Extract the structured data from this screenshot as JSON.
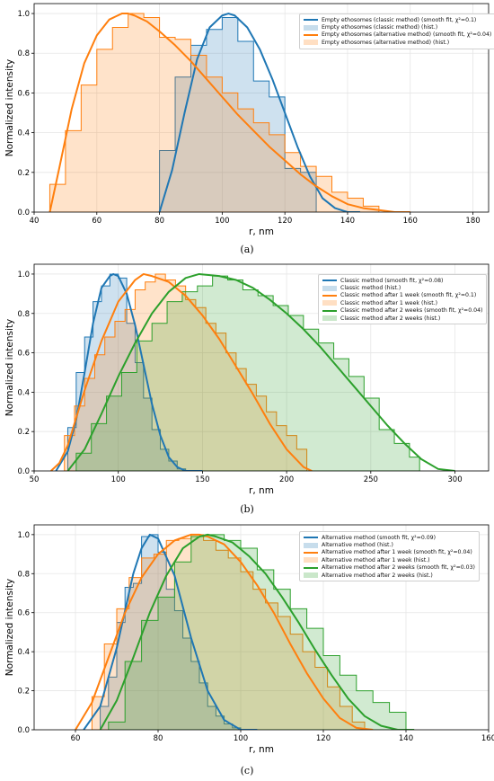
{
  "chart_data": [
    {
      "type": "line",
      "panel_label": "(a)",
      "xlabel": "r, nm",
      "ylabel": "Normalized intensity",
      "xlim": [
        40,
        185
      ],
      "ylim": [
        0,
        1.05
      ],
      "xticks": [
        40,
        60,
        80,
        100,
        120,
        140,
        160,
        180
      ],
      "yticks": [
        0.0,
        0.2,
        0.4,
        0.6,
        0.8,
        1.0
      ],
      "grid": true,
      "legend_position": "top-right",
      "series": [
        {
          "name": "Empty ethosomes (classic method) (smooth fit, χ²=0.1)",
          "kind": "curve",
          "color": "#1f77b4",
          "x": [
            80,
            84,
            88,
            92,
            96,
            100,
            102,
            104,
            108,
            112,
            116,
            120,
            124,
            128,
            132,
            136,
            140,
            144
          ],
          "y": [
            0.0,
            0.21,
            0.5,
            0.77,
            0.93,
            0.99,
            1.0,
            0.99,
            0.93,
            0.82,
            0.67,
            0.5,
            0.33,
            0.18,
            0.07,
            0.02,
            0.0,
            0.0
          ]
        },
        {
          "name": "Empty ethosomes (classic method) (hist.)",
          "kind": "hist",
          "color": "#1f77b4",
          "edges": [
            80,
            85,
            90,
            95,
            100,
            105,
            110,
            115,
            120,
            125,
            130
          ],
          "values": [
            0.31,
            0.68,
            0.84,
            0.92,
            0.98,
            0.86,
            0.66,
            0.58,
            0.22,
            0.2
          ]
        },
        {
          "name": "Empty ethosomes (alternative method) (smooth fit, χ²=0.04)",
          "kind": "curve",
          "color": "#ff7f0e",
          "x": [
            45,
            48,
            52,
            56,
            60,
            64,
            68,
            70,
            72,
            76,
            80,
            85,
            90,
            95,
            100,
            105,
            110,
            115,
            120,
            125,
            130,
            135,
            140,
            145,
            150,
            155,
            160
          ],
          "y": [
            0.0,
            0.22,
            0.52,
            0.75,
            0.89,
            0.97,
            1.0,
            1.0,
            0.99,
            0.96,
            0.91,
            0.84,
            0.76,
            0.67,
            0.58,
            0.49,
            0.41,
            0.33,
            0.26,
            0.19,
            0.13,
            0.08,
            0.04,
            0.02,
            0.01,
            0.0,
            0.0
          ]
        },
        {
          "name": "Empty ethosomes (alternative method) (hist.)",
          "kind": "hist",
          "color": "#ff7f0e",
          "edges": [
            45,
            50,
            55,
            60,
            65,
            70,
            75,
            80,
            85,
            90,
            95,
            100,
            105,
            110,
            115,
            120,
            125,
            130,
            135,
            140,
            145,
            150
          ],
          "values": [
            0.14,
            0.41,
            0.64,
            0.82,
            0.93,
            1.0,
            0.98,
            0.88,
            0.87,
            0.79,
            0.68,
            0.6,
            0.52,
            0.45,
            0.39,
            0.3,
            0.23,
            0.18,
            0.1,
            0.07,
            0.03
          ]
        }
      ]
    },
    {
      "type": "line",
      "panel_label": "(b)",
      "xlabel": "r, nm",
      "ylabel": "Normalized intensity",
      "xlim": [
        50,
        320
      ],
      "ylim": [
        0,
        1.05
      ],
      "xticks": [
        50,
        100,
        150,
        200,
        250,
        300
      ],
      "yticks": [
        0.0,
        0.2,
        0.4,
        0.6,
        0.8,
        1.0
      ],
      "grid": true,
      "legend_position": "top-right",
      "series": [
        {
          "name": "Classic method (smooth fit, χ²=0.08)",
          "kind": "curve",
          "color": "#1f77b4",
          "x": [
            63,
            70,
            75,
            80,
            85,
            90,
            95,
            97,
            100,
            105,
            110,
            115,
            120,
            125,
            130,
            135,
            140,
            150
          ],
          "y": [
            0.0,
            0.1,
            0.26,
            0.5,
            0.75,
            0.93,
            0.99,
            1.0,
            0.99,
            0.9,
            0.74,
            0.54,
            0.34,
            0.18,
            0.07,
            0.02,
            0.0,
            0.0
          ]
        },
        {
          "name": "Classic method (hist.)",
          "kind": "hist",
          "color": "#1f77b4",
          "edges": [
            70,
            75,
            80,
            85,
            90,
            95,
            100,
            105,
            110,
            115,
            120,
            125,
            130,
            135,
            140
          ],
          "values": [
            0.22,
            0.5,
            0.68,
            0.86,
            0.94,
            1.0,
            0.98,
            0.75,
            0.55,
            0.37,
            0.21,
            0.11,
            0.05,
            0.01
          ]
        },
        {
          "name": "Classic method after 1 week (smooth fit, χ²=0.1)",
          "kind": "curve",
          "color": "#ff7f0e",
          "x": [
            60,
            65,
            70,
            75,
            80,
            90,
            100,
            110,
            115,
            120,
            130,
            140,
            150,
            160,
            170,
            180,
            190,
            200,
            210,
            215
          ],
          "y": [
            0.0,
            0.04,
            0.13,
            0.27,
            0.41,
            0.66,
            0.86,
            0.97,
            1.0,
            0.99,
            0.96,
            0.89,
            0.79,
            0.67,
            0.53,
            0.39,
            0.24,
            0.11,
            0.02,
            0.0
          ]
        },
        {
          "name": "Classic method after 1 week (hist.)",
          "kind": "hist",
          "color": "#ff7f0e",
          "edges": [
            68,
            74,
            80,
            86,
            92,
            98,
            104,
            110,
            116,
            122,
            128,
            134,
            140,
            146,
            152,
            158,
            164,
            170,
            176,
            182,
            188,
            194,
            200,
            206,
            212
          ],
          "values": [
            0.18,
            0.33,
            0.47,
            0.59,
            0.68,
            0.76,
            0.82,
            0.92,
            0.96,
            1.0,
            0.97,
            0.94,
            0.87,
            0.83,
            0.75,
            0.7,
            0.6,
            0.52,
            0.44,
            0.38,
            0.3,
            0.23,
            0.18,
            0.11
          ]
        },
        {
          "name": "Classic method after 2 weeks (smooth fit, χ²=0.04)",
          "kind": "curve",
          "color": "#2ca02c",
          "x": [
            70,
            80,
            90,
            100,
            110,
            120,
            130,
            140,
            148,
            160,
            170,
            180,
            190,
            200,
            210,
            220,
            230,
            240,
            250,
            260,
            270,
            280,
            290,
            300
          ],
          "y": [
            0.0,
            0.11,
            0.29,
            0.48,
            0.65,
            0.8,
            0.91,
            0.98,
            1.0,
            0.99,
            0.97,
            0.93,
            0.87,
            0.8,
            0.72,
            0.63,
            0.53,
            0.43,
            0.33,
            0.23,
            0.14,
            0.06,
            0.01,
            0.0
          ]
        },
        {
          "name": "Classic method after 2 weeks (hist.)",
          "kind": "hist",
          "color": "#2ca02c",
          "edges": [
            75,
            84,
            93,
            102,
            111,
            120,
            129,
            138,
            147,
            156,
            165,
            174,
            183,
            192,
            201,
            210,
            219,
            228,
            237,
            246,
            255,
            264,
            273,
            279
          ],
          "values": [
            0.09,
            0.24,
            0.38,
            0.5,
            0.66,
            0.75,
            0.86,
            0.91,
            0.94,
            0.99,
            0.97,
            0.92,
            0.89,
            0.84,
            0.79,
            0.72,
            0.65,
            0.57,
            0.48,
            0.37,
            0.21,
            0.14,
            0.07
          ]
        }
      ]
    },
    {
      "type": "line",
      "panel_label": "(c)",
      "xlabel": "r, nm",
      "ylabel": "Normalized intensity",
      "xlim": [
        50,
        160
      ],
      "ylim": [
        0,
        1.05
      ],
      "xticks": [
        60,
        80,
        100,
        120,
        140,
        160
      ],
      "yticks": [
        0.0,
        0.2,
        0.4,
        0.6,
        0.8,
        1.0
      ],
      "grid": true,
      "legend_position": "top-right",
      "series": [
        {
          "name": "Alternative method (smooth fit, χ²=0.09)",
          "kind": "curve",
          "color": "#1f77b4",
          "x": [
            62,
            66,
            70,
            74,
            76,
            78,
            80,
            84,
            88,
            92,
            96,
            100,
            104
          ],
          "y": [
            0.0,
            0.12,
            0.42,
            0.8,
            0.93,
            1.0,
            0.98,
            0.79,
            0.47,
            0.2,
            0.05,
            0.0,
            0.0
          ]
        },
        {
          "name": "Alternative method (hist.)",
          "kind": "hist",
          "color": "#1f77b4",
          "edges": [
            66,
            68,
            70,
            72,
            74,
            76,
            78,
            80,
            82,
            84,
            86,
            88,
            90,
            92,
            94,
            96,
            98,
            100
          ],
          "values": [
            0.12,
            0.27,
            0.55,
            0.73,
            0.75,
            0.99,
            1.0,
            0.91,
            0.72,
            0.61,
            0.47,
            0.35,
            0.24,
            0.12,
            0.07,
            0.03,
            0.01
          ]
        },
        {
          "name": "Alternative method after 1 week (smooth fit, χ²=0.04)",
          "kind": "curve",
          "color": "#ff7f0e",
          "x": [
            60,
            64,
            68,
            72,
            76,
            80,
            84,
            88,
            90,
            92,
            96,
            100,
            104,
            108,
            112,
            116,
            120,
            124,
            128,
            132
          ],
          "y": [
            0.0,
            0.14,
            0.37,
            0.6,
            0.78,
            0.9,
            0.97,
            1.0,
            1.0,
            0.99,
            0.95,
            0.86,
            0.74,
            0.6,
            0.44,
            0.29,
            0.16,
            0.06,
            0.01,
            0.0
          ]
        },
        {
          "name": "Alternative method after 1 week (hist.)",
          "kind": "hist",
          "color": "#ff7f0e",
          "edges": [
            64,
            67,
            70,
            73,
            76,
            79,
            82,
            85,
            88,
            91,
            94,
            97,
            100,
            103,
            106,
            109,
            112,
            115,
            118,
            121,
            124,
            127,
            130
          ],
          "values": [
            0.17,
            0.44,
            0.62,
            0.78,
            0.88,
            0.9,
            0.97,
            0.98,
            1.0,
            0.97,
            0.92,
            0.88,
            0.81,
            0.72,
            0.65,
            0.58,
            0.49,
            0.4,
            0.32,
            0.22,
            0.12,
            0.04
          ]
        },
        {
          "name": "Alternative method after 2 weeks (smooth fit, χ²=0.03)",
          "kind": "curve",
          "color": "#2ca02c",
          "x": [
            66,
            70,
            74,
            78,
            82,
            86,
            90,
            92,
            94,
            98,
            102,
            106,
            110,
            114,
            118,
            122,
            126,
            130,
            134,
            138,
            142
          ],
          "y": [
            0.0,
            0.15,
            0.37,
            0.6,
            0.79,
            0.93,
            0.99,
            1.0,
            0.99,
            0.96,
            0.89,
            0.8,
            0.68,
            0.55,
            0.41,
            0.28,
            0.16,
            0.07,
            0.02,
            0.0,
            0.0
          ]
        },
        {
          "name": "Alternative method after 2 weeks (hist.)",
          "kind": "hist",
          "color": "#2ca02c",
          "edges": [
            68,
            72,
            76,
            80,
            84,
            88,
            92,
            96,
            100,
            104,
            108,
            112,
            116,
            120,
            124,
            128,
            132,
            136,
            140
          ],
          "values": [
            0.04,
            0.35,
            0.56,
            0.68,
            0.86,
            0.99,
            1.0,
            0.97,
            0.93,
            0.82,
            0.72,
            0.62,
            0.52,
            0.38,
            0.28,
            0.2,
            0.14,
            0.09
          ]
        }
      ]
    }
  ]
}
